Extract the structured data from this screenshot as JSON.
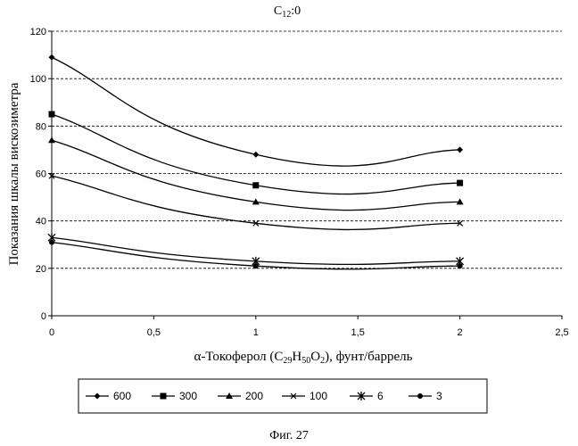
{
  "chart_data": {
    "type": "line",
    "title": "C12:0",
    "xlabel": "α-Токоферол (C29H50O2), фунт/баррель",
    "ylabel": "Показания шкалы вискозиметра",
    "xlim": [
      0,
      2.5
    ],
    "ylim": [
      0,
      120
    ],
    "x_ticks": [
      "0",
      "0,5",
      "1",
      "1,5",
      "2",
      "2,5"
    ],
    "y_ticks": [
      "0",
      "20",
      "40",
      "60",
      "80",
      "100",
      "120"
    ],
    "grid": "horizontal dashed",
    "legend_position": "bottom",
    "x": [
      0,
      1,
      2
    ],
    "series": [
      {
        "name": "600",
        "marker": "diamond",
        "values": [
          109,
          68,
          70
        ]
      },
      {
        "name": "300",
        "marker": "square",
        "values": [
          85,
          55,
          56
        ]
      },
      {
        "name": "200",
        "marker": "triangle",
        "values": [
          74,
          48,
          48
        ]
      },
      {
        "name": "100",
        "marker": "x",
        "values": [
          59,
          39,
          39
        ]
      },
      {
        "name": "6",
        "marker": "asterisk",
        "values": [
          33,
          23,
          23
        ]
      },
      {
        "name": "3",
        "marker": "circle",
        "values": [
          31,
          21,
          21
        ]
      }
    ]
  },
  "caption": "Фиг. 27"
}
